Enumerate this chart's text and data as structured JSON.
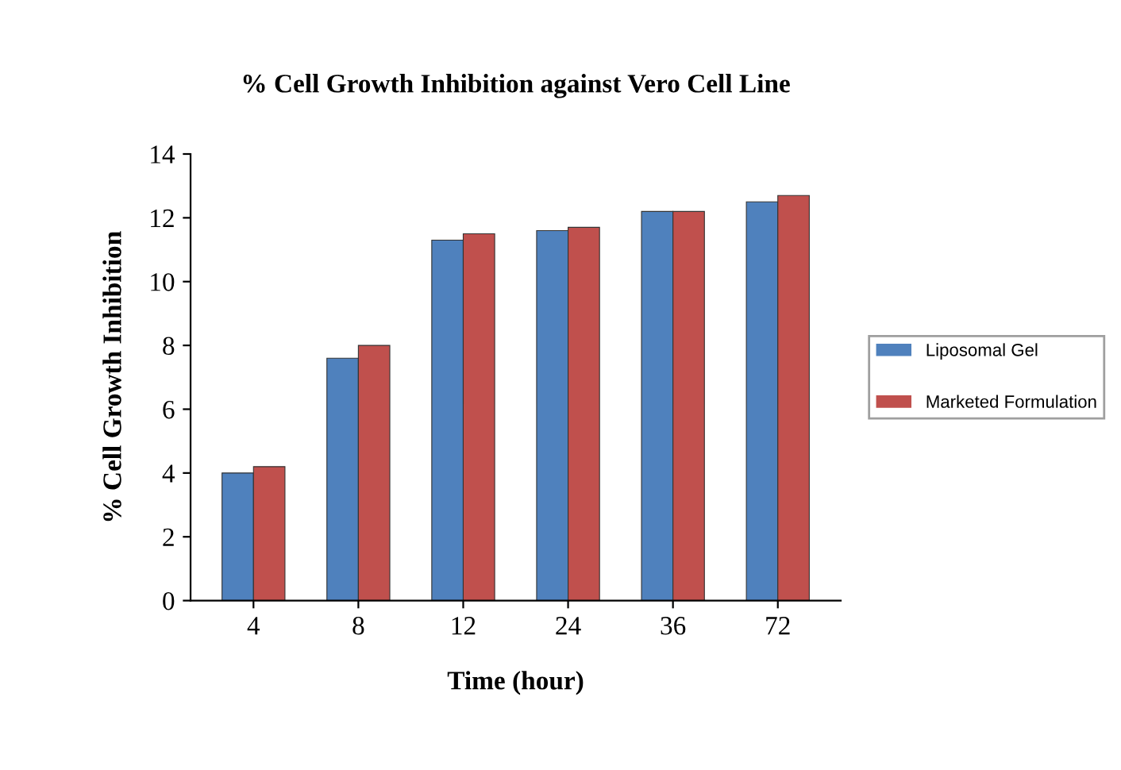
{
  "chart_data": {
    "type": "bar",
    "title": "% Cell Growth Inhibition against Vero Cell Line",
    "xlabel": "Time (hour)",
    "ylabel": "% Cell Growth Inhibition",
    "categories": [
      "4",
      "8",
      "12",
      "24",
      "36",
      "72"
    ],
    "series": [
      {
        "name": "Liposomal Gel",
        "color": "#4f81bd",
        "values": [
          4.0,
          7.6,
          11.3,
          11.6,
          12.2,
          12.5
        ]
      },
      {
        "name": "Marketed Formulation",
        "color": "#c0504d",
        "values": [
          4.2,
          8.0,
          11.5,
          11.7,
          12.2,
          12.7
        ]
      }
    ],
    "ylim": [
      0,
      14
    ],
    "yticks": [
      0,
      2,
      4,
      6,
      8,
      10,
      12,
      14
    ],
    "grid": false,
    "legend": "right"
  }
}
